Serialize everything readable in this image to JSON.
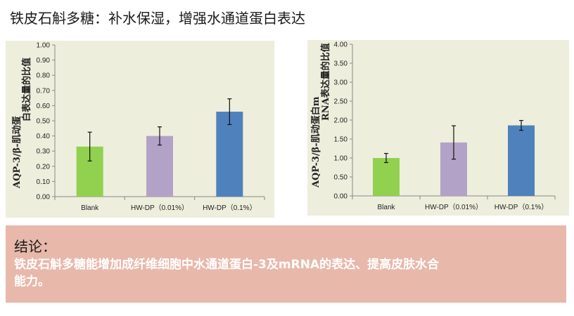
{
  "page_title": "铁皮石斛多糖：补水保湿，增强水通道蛋白表达",
  "chart_data": [
    {
      "type": "bar",
      "ylabel": "AQP-3/β-肌动蛋白表达量的比值",
      "categories": [
        "Blank",
        "HW-DP（0.01%）",
        "HW-DP（0.1%）"
      ],
      "values": [
        0.33,
        0.4,
        0.56
      ],
      "errors": [
        0.095,
        0.06,
        0.085
      ],
      "ylim": [
        0,
        1.0
      ],
      "yticks": [
        "0.00",
        "0.10",
        "0.20",
        "0.30",
        "0.40",
        "0.50",
        "0.60",
        "0.70",
        "0.80",
        "0.90",
        "1.00"
      ],
      "colors": [
        "#92d050",
        "#b3a2c7",
        "#4f81bd"
      ]
    },
    {
      "type": "bar",
      "ylabel": "AQP-3/β-肌动蛋白mRNA表达量的比值",
      "categories": [
        "Blank",
        "HW-DP（0.01%）",
        "HW-DP（0.1%）"
      ],
      "values": [
        1.0,
        1.41,
        1.86
      ],
      "errors": [
        0.12,
        0.44,
        0.13
      ],
      "ylim": [
        0,
        4.0
      ],
      "yticks": [
        "0.00",
        "0.50",
        "1.00",
        "1.50",
        "2.00",
        "2.50",
        "3.00",
        "3.50",
        "4.00"
      ],
      "colors": [
        "#92d050",
        "#b3a2c7",
        "#4f81bd"
      ]
    }
  ],
  "conclusion": {
    "title": "结论：",
    "text": "铁皮石斛多糖能增加成纤维细胞中水通道蛋白-3及mRNA的表达、提高皮肤水合能力。"
  }
}
